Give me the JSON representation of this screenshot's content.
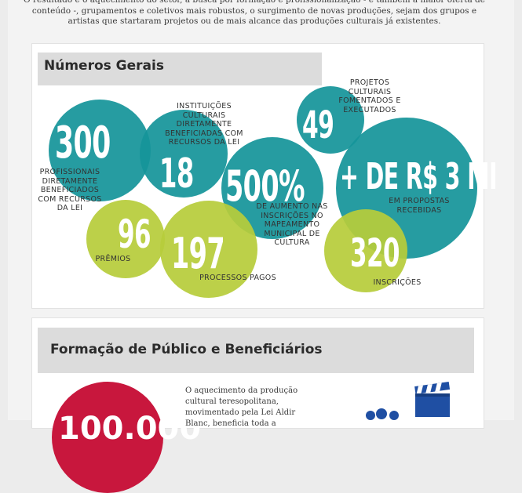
{
  "intro": "O resultado é o aquecimento do setor, a busca por formação e profissionalização - e também a maior oferta de conteúdo -, grupamentos e coletivos mais robustos, o surgimento de novas produções, sejam dos grupos e artistas que startaram projetos ou de mais alcance das produções culturais já existentes.",
  "section1": {
    "title": "Números Gerais",
    "stats": [
      {
        "value": "300",
        "label": "PROFISSIONAIS DIRETAMENTE BENEFICIADOS COM RECURSOS DA LEI"
      },
      {
        "value": "18",
        "label": "INSTITUIÇÕES CULTURAIS DIRETAMENTE BENEFICIADAS COM RECURSOS DA LEI"
      },
      {
        "value": "500%",
        "label": "DE AUMENTO NAS INSCRIÇÕES NO MAPEAMENTO MUNICIPAL DE CULTURA"
      },
      {
        "value": "49",
        "label": "PROJETOS CULTURAIS FOMENTADOS E EXECUTADOS"
      },
      {
        "value": "+ DE R$ 3 MI",
        "label": "EM PROPOSTAS RECEBIDAS"
      },
      {
        "value": "96",
        "label": "PRÊMIOS"
      },
      {
        "value": "197",
        "label": "PROCESSOS PAGOS"
      },
      {
        "value": "320",
        "label": "INSCRIÇÕES"
      }
    ]
  },
  "section2": {
    "title": "Formação de Público e Beneficiários",
    "body": "O aquecimento da produção cultural teresopolitana, movimentado pela Lei Aldir Blanc, beneficia toda a",
    "big_number": "100.000"
  },
  "colors": {
    "teal": "#15949a",
    "lime": "#b7cc3b",
    "red": "#c8173d"
  },
  "icons": [
    "film-clapper-icon",
    "people-icon"
  ]
}
